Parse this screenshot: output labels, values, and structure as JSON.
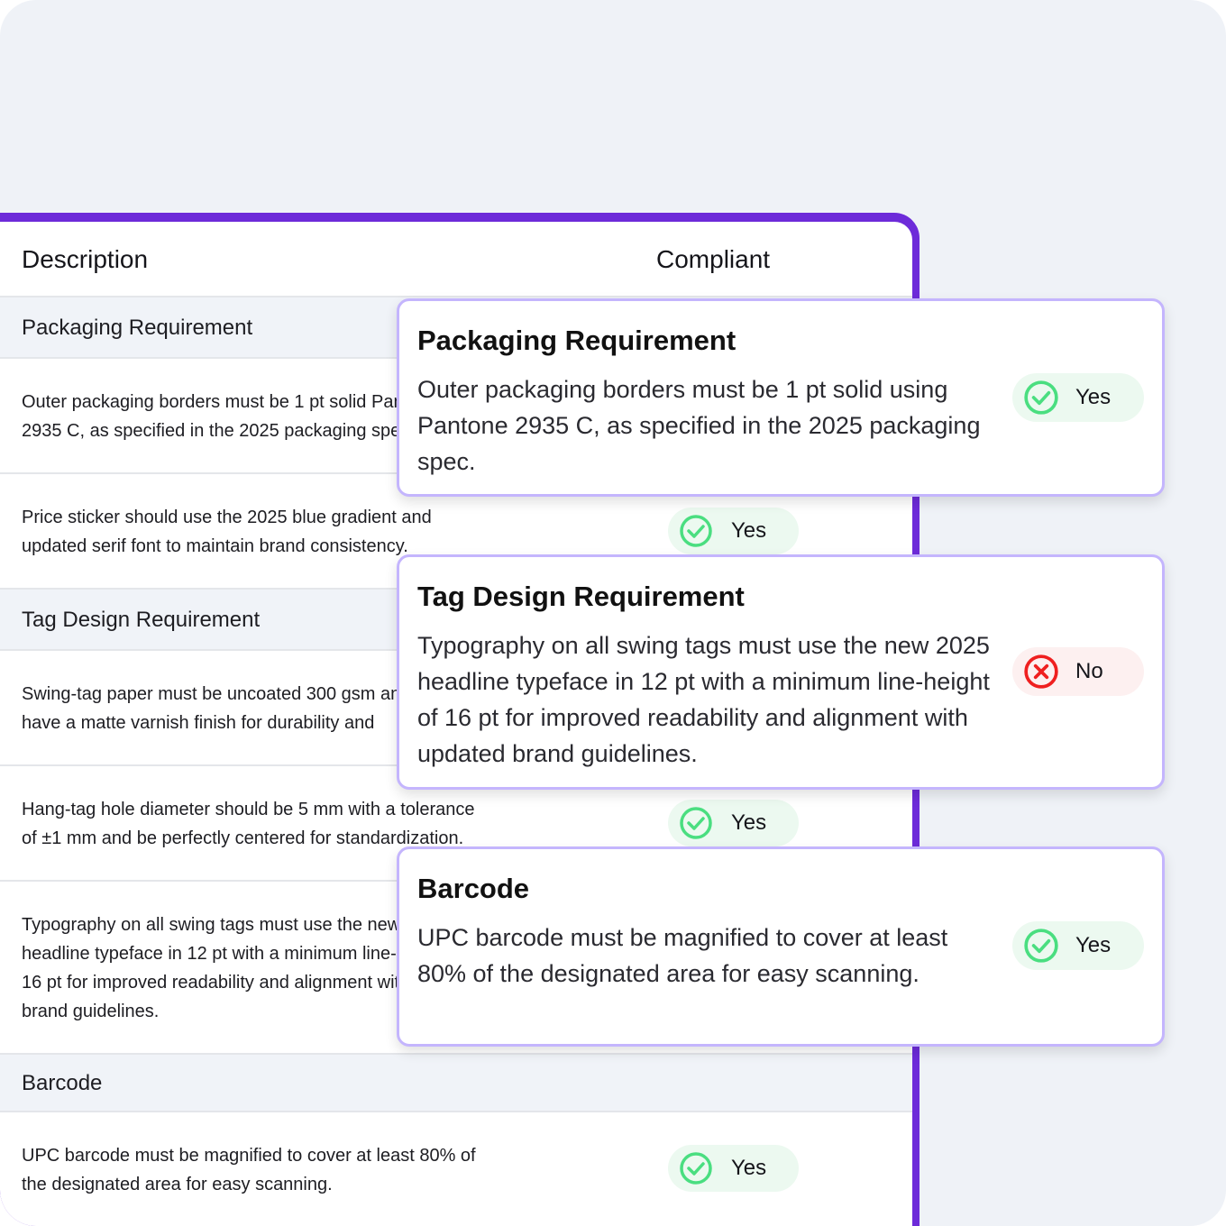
{
  "table": {
    "headers": {
      "description": "Description",
      "compliant": "Compliant"
    },
    "groups": [
      {
        "label": "Packaging Requirement"
      },
      {
        "label": "Tag Design Requirement"
      },
      {
        "label": "Barcode"
      }
    ],
    "rows": [
      {
        "lines": [
          "Outer packaging borders must be 1 pt solid Pantone",
          "2935 C, as specified in the 2025 packaging spec."
        ]
      },
      {
        "lines": [
          "Price sticker should use the 2025 blue gradient and",
          "updated serif font to maintain brand consistency."
        ],
        "compliant": "Yes"
      },
      {
        "lines": [
          "Swing-tag paper must be uncoated 300 gsm and",
          "have a matte varnish finish for durability and"
        ]
      },
      {
        "lines": [
          "Hang-tag hole diameter should be 5 mm with a tolerance",
          "of ±1 mm and be perfectly centered for standardization."
        ],
        "compliant": "Yes"
      },
      {
        "lines": [
          "Typography on all swing tags must use the new 2025",
          "headline typeface in 12 pt with a minimum line-height of",
          "16 pt for improved readability and alignment with updated",
          "brand guidelines."
        ]
      },
      {
        "lines": [
          "UPC barcode must be magnified to cover at least 80% of",
          "the designated area for easy scanning."
        ],
        "compliant": "Yes"
      }
    ]
  },
  "cards": [
    {
      "title": "Packaging Requirement",
      "body": "Outer packaging borders must be 1 pt solid using Pantone 2935 C, as specified in the 2025 packaging spec.",
      "compliant": "Yes"
    },
    {
      "title": "Tag Design Requirement",
      "body": "Typography on all swing tags must use the new 2025 headline typeface in 12 pt with a minimum line-height of 16 pt for improved readability and alignment with updated brand guidelines.",
      "compliant": "No"
    },
    {
      "title": "Barcode",
      "body": "UPC barcode must be magnified to cover at least 80% of the designated area for easy scanning.",
      "compliant": "Yes"
    }
  ],
  "colors": {
    "accent": "#6d2bd9",
    "card_border": "#c4b5fd",
    "yes": "#4ade80",
    "no": "#ef2020"
  }
}
